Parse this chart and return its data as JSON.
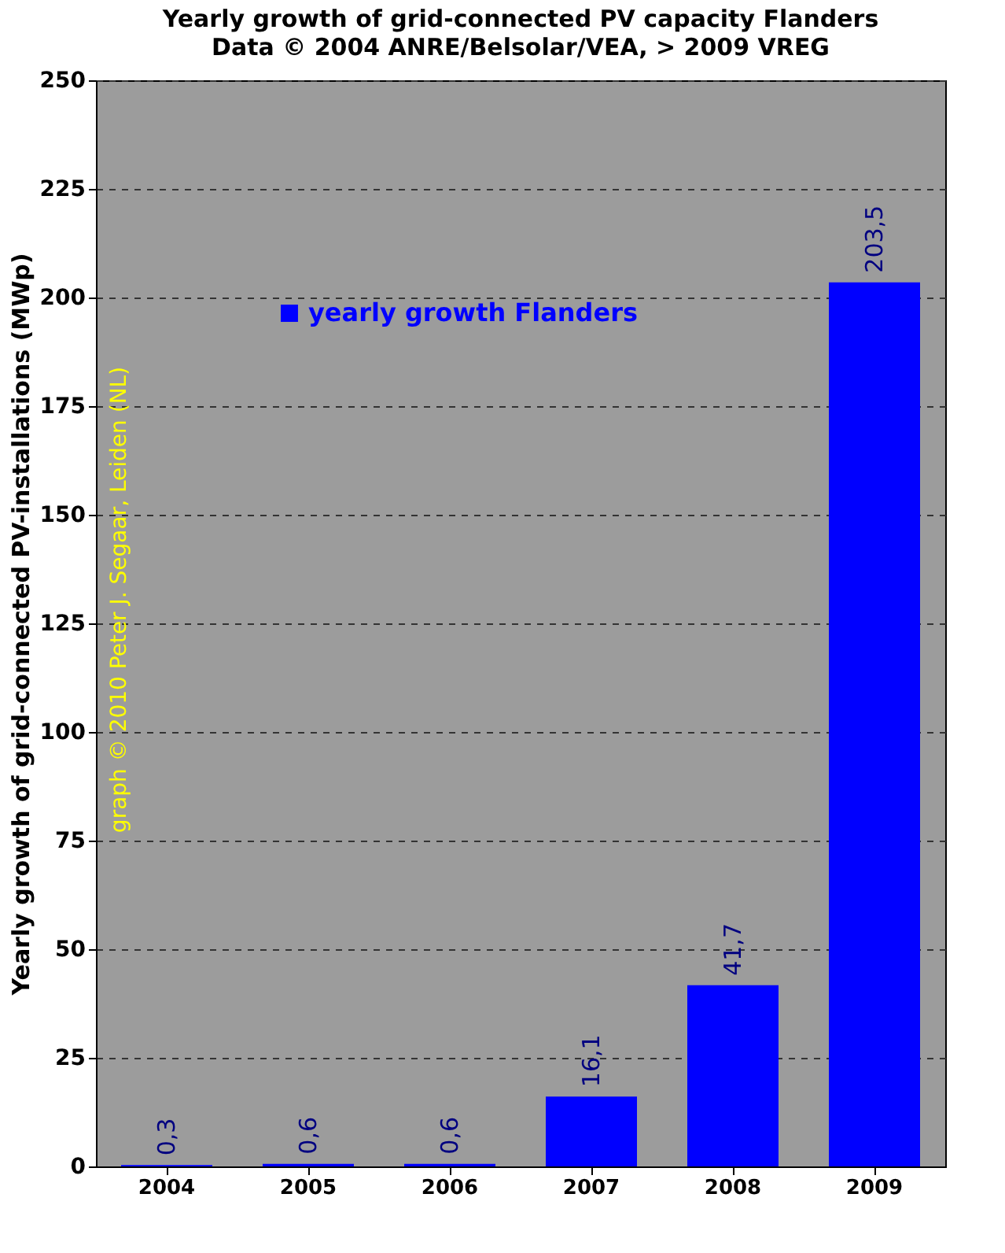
{
  "chart_data": {
    "type": "bar",
    "title": "Yearly growth of grid-connected PV capacity Flanders",
    "subtitle": "Data © 2004 ANRE/Belsolar/VEA, > 2009 VREG",
    "ylabel": "Yearly growth of grid-connected PV-installations (MWp)",
    "categories": [
      "2004",
      "2005",
      "2006",
      "2007",
      "2008",
      "2009"
    ],
    "series": [
      {
        "name": "yearly growth Flanders",
        "color": "#0000ff",
        "values": [
          0.3,
          0.6,
          0.6,
          16.1,
          41.7,
          203.5
        ]
      }
    ],
    "value_labels": [
      "0,3",
      "0,6",
      "0,6",
      "16,1",
      "41,7",
      "203,5"
    ],
    "ylim": [
      0,
      250
    ],
    "yticks": [
      0,
      25,
      50,
      75,
      100,
      125,
      150,
      175,
      200,
      225,
      250
    ],
    "grid": "y",
    "legend": "top left",
    "annotations": [
      "graph © 2010 Peter J. Segaar, Leiden (NL)"
    ]
  }
}
